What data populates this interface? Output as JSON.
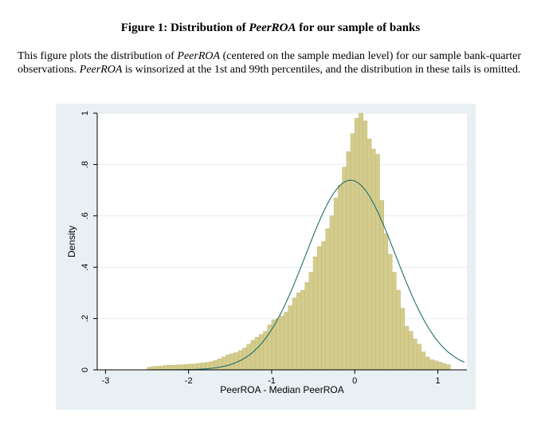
{
  "figure": {
    "title_prefix": "Figure 1: Distribution of ",
    "title_var": "PeerROA",
    "title_suffix": " for our sample of banks",
    "caption": [
      {
        "text": "This figure plots the distribution of "
      },
      {
        "text": "PeerROA",
        "italic": true
      },
      {
        "text": " (centered on the sample median level) for our sample bank-quarter observations. "
      },
      {
        "text": "PeerROA",
        "italic": true
      },
      {
        "text": " is winsorized at the 1st and 99th percentiles, and the distribution in these tails is omitted."
      }
    ]
  },
  "chart_data": {
    "type": "bar",
    "subtype": "histogram",
    "xlabel": "PeerROA - Median PeerROA",
    "ylabel": "Density",
    "xlim": [
      -3.1,
      1.35
    ],
    "ylim": [
      0,
      1.0
    ],
    "xticks": [
      {
        "value": -3,
        "label": "-3"
      },
      {
        "value": -2,
        "label": "-2"
      },
      {
        "value": -1,
        "label": "-1"
      },
      {
        "value": 0,
        "label": "0"
      },
      {
        "value": 1,
        "label": "1"
      }
    ],
    "yticks": [
      {
        "value": 0,
        "label": "0"
      },
      {
        "value": 0.2,
        "label": ".2"
      },
      {
        "value": 0.4,
        "label": ".4"
      },
      {
        "value": 0.6,
        "label": ".6"
      },
      {
        "value": 0.8,
        "label": ".8"
      },
      {
        "value": 1,
        "label": "1"
      }
    ],
    "grid": true,
    "bin_start": -2.5,
    "bin_width": 0.05,
    "densities": [
      0.01,
      0.013,
      0.014,
      0.015,
      0.017,
      0.018,
      0.018,
      0.019,
      0.02,
      0.021,
      0.022,
      0.023,
      0.025,
      0.027,
      0.029,
      0.032,
      0.037,
      0.043,
      0.05,
      0.058,
      0.063,
      0.067,
      0.075,
      0.085,
      0.1,
      0.115,
      0.127,
      0.138,
      0.15,
      0.175,
      0.195,
      0.2,
      0.21,
      0.225,
      0.25,
      0.28,
      0.3,
      0.31,
      0.34,
      0.38,
      0.44,
      0.48,
      0.5,
      0.55,
      0.6,
      0.67,
      0.72,
      0.79,
      0.85,
      0.92,
      0.98,
      1.0,
      0.97,
      0.9,
      0.86,
      0.84,
      0.66,
      0.53,
      0.45,
      0.38,
      0.31,
      0.24,
      0.17,
      0.15,
      0.12,
      0.1,
      0.07,
      0.05,
      0.04,
      0.035,
      0.03,
      0.025,
      0.02
    ],
    "curve": {
      "type": "normal",
      "mean": -0.05,
      "sd": 0.54
    },
    "colors": {
      "bar_fill": "#d4cc8d",
      "bar_edge": "#bfb874",
      "curve": "#1f6e6a",
      "panel_bg": "#e9f0f4",
      "plot_bg": "#ffffff",
      "grid": "#e8eef2",
      "axis": "#000000"
    }
  }
}
